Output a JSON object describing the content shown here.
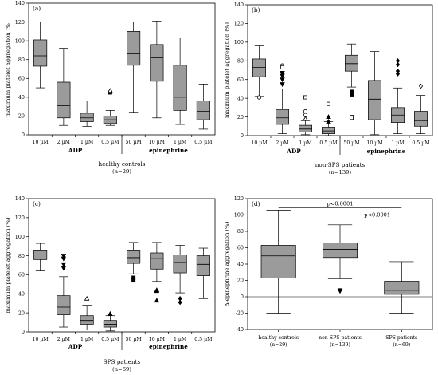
{
  "chart_data": [
    {
      "type": "box",
      "panel_label": "(a)",
      "ylabel": "maximum platelet aggregation (%)",
      "ylim": [
        0,
        140
      ],
      "yticks": [
        0,
        20,
        40,
        60,
        80,
        100,
        120,
        140
      ],
      "grid": false,
      "categories": [
        "10 µM",
        "2 µM",
        "1 µM",
        "0.5 µM",
        "50 µM",
        "10 µM",
        "1 µM",
        "0.5 µM"
      ],
      "groups": [
        {
          "label": "ADP",
          "categories": [
            0,
            1,
            2,
            3
          ]
        },
        {
          "label": "epinephrine",
          "categories": [
            4,
            5,
            6,
            7
          ]
        }
      ],
      "caption": "healthy controls",
      "caption_n": "(n=29)",
      "boxes": [
        {
          "min": 50,
          "q1": 73,
          "median": 84,
          "q3": 101,
          "max": 120
        },
        {
          "min": 10,
          "q1": 18,
          "median": 31,
          "q3": 56,
          "max": 92
        },
        {
          "min": 9,
          "q1": 14,
          "median": 18,
          "q3": 23,
          "max": 36
        },
        {
          "min": 10,
          "q1": 12,
          "median": 16,
          "q3": 20,
          "max": 26,
          "outliers": [
            {
              "y": 45,
              "marker": "square"
            },
            {
              "y": 47,
              "marker": "triangle-open"
            }
          ]
        },
        {
          "min": 24,
          "q1": 74,
          "median": 86,
          "q3": 110,
          "max": 120
        },
        {
          "min": 18,
          "q1": 57,
          "median": 82,
          "q3": 96,
          "max": 121
        },
        {
          "min": 11,
          "q1": 26,
          "median": 40,
          "q3": 74,
          "max": 103
        },
        {
          "min": 6,
          "q1": 16,
          "median": 25,
          "q3": 36,
          "max": 54
        }
      ]
    },
    {
      "type": "box",
      "panel_label": "(b)",
      "ylabel": "maximum platelet aggregation (%)",
      "ylim": [
        0,
        140
      ],
      "yticks": [
        0,
        20,
        40,
        60,
        80,
        100,
        120,
        140
      ],
      "grid": false,
      "categories": [
        "10 µM",
        "2 µM",
        "1 µM",
        "0.5 µM",
        "50 µM",
        "10 µM",
        "1 µM",
        "0.5 µM"
      ],
      "groups": [
        {
          "label": "ADP",
          "categories": [
            0,
            1,
            2,
            3
          ]
        },
        {
          "label": "epinephrine",
          "categories": [
            4,
            5,
            6,
            7
          ]
        }
      ],
      "caption": "non-SPS patients",
      "caption_n": "(n=139)",
      "boxes": [
        {
          "min": 42,
          "q1": 63,
          "median": 73,
          "q3": 82,
          "max": 96,
          "outliers": [
            {
              "y": 41,
              "marker": "circle-open"
            }
          ]
        },
        {
          "min": 2,
          "q1": 12,
          "median": 19,
          "q3": 28,
          "max": 50,
          "outliers": [
            {
              "y": 75,
              "marker": "circle-open"
            },
            {
              "y": 73,
              "marker": "circle-open"
            },
            {
              "y": 67,
              "marker": "triangle-down"
            },
            {
              "y": 64,
              "marker": "triangle-down"
            },
            {
              "y": 60,
              "marker": "triangle-down"
            },
            {
              "y": 55,
              "marker": "triangle-down"
            }
          ]
        },
        {
          "min": 1,
          "q1": 4,
          "median": 7,
          "q3": 11,
          "max": 16,
          "outliers": [
            {
              "y": 41,
              "marker": "square-open"
            },
            {
              "y": 26,
              "marker": "circle-open"
            },
            {
              "y": 22,
              "marker": "circle-open"
            },
            {
              "y": 18,
              "marker": "triangle-open"
            }
          ]
        },
        {
          "min": 0,
          "q1": 2,
          "median": 5,
          "q3": 9,
          "max": 15,
          "outliers": [
            {
              "y": 34,
              "marker": "square-open"
            },
            {
              "y": 20,
              "marker": "triangle"
            },
            {
              "y": 15,
              "marker": "triangle"
            }
          ]
        },
        {
          "min": 52,
          "q1": 69,
          "median": 77,
          "q3": 86,
          "max": 98,
          "outliers": [
            {
              "y": 47,
              "marker": "square"
            },
            {
              "y": 44,
              "marker": "square"
            },
            {
              "y": 20,
              "marker": "square-open"
            },
            {
              "y": 19,
              "marker": "square-open"
            }
          ]
        },
        {
          "min": 1,
          "q1": 17,
          "median": 39,
          "q3": 59,
          "max": 90
        },
        {
          "min": 2,
          "q1": 14,
          "median": 22,
          "q3": 30,
          "max": 51,
          "outliers": [
            {
              "y": 80,
              "marker": "diamond"
            },
            {
              "y": 76,
              "marker": "diamond"
            },
            {
              "y": 69,
              "marker": "diamond"
            },
            {
              "y": 66,
              "marker": "diamond"
            }
          ]
        },
        {
          "min": 2,
          "q1": 10,
          "median": 16,
          "q3": 26,
          "max": 43,
          "outliers": [
            {
              "y": 53,
              "marker": "diamond-open"
            }
          ]
        }
      ]
    },
    {
      "type": "box",
      "panel_label": "(c)",
      "ylabel": "maximum platelet aggregation (%)",
      "ylim": [
        0,
        140
      ],
      "yticks": [
        0,
        20,
        40,
        60,
        80,
        100,
        120,
        140
      ],
      "grid": false,
      "categories": [
        "10 µM",
        "2 µM",
        "1 µM",
        "0.5 µM",
        "50 µM",
        "10 µM",
        "1 µM",
        "0.5 µM"
      ],
      "groups": [
        {
          "label": "ADP",
          "categories": [
            0,
            1,
            2,
            3
          ]
        },
        {
          "label": "epinephrine",
          "categories": [
            4,
            5,
            6,
            7
          ]
        }
      ],
      "caption": "SPS patients",
      "caption_n": "(n=69)",
      "boxes": [
        {
          "min": 64,
          "q1": 76,
          "median": 81,
          "q3": 86,
          "max": 93
        },
        {
          "min": 5,
          "q1": 18,
          "median": 26,
          "q3": 38,
          "max": 58,
          "outliers": [
            {
              "y": 80,
              "marker": "triangle-down"
            },
            {
              "y": 77,
              "marker": "triangle-down"
            },
            {
              "y": 71,
              "marker": "triangle-down"
            },
            {
              "y": 67,
              "marker": "triangle-down"
            }
          ]
        },
        {
          "min": 2,
          "q1": 8,
          "median": 12,
          "q3": 17,
          "max": 28,
          "outliers": [
            {
              "y": 35,
              "marker": "triangle-open"
            }
          ]
        },
        {
          "min": 1,
          "q1": 5,
          "median": 8,
          "q3": 12,
          "max": 17,
          "outliers": [
            {
              "y": 19,
              "marker": "triangle"
            }
          ]
        },
        {
          "min": 61,
          "q1": 72,
          "median": 78,
          "q3": 86,
          "max": 94,
          "outliers": [
            {
              "y": 57,
              "marker": "square"
            },
            {
              "y": 54,
              "marker": "square"
            }
          ]
        },
        {
          "min": 53,
          "q1": 66,
          "median": 77,
          "q3": 83,
          "max": 94,
          "outliers": [
            {
              "y": 44,
              "marker": "triangle"
            },
            {
              "y": 43,
              "marker": "triangle"
            },
            {
              "y": 33,
              "marker": "triangle"
            }
          ]
        },
        {
          "min": 41,
          "q1": 62,
          "median": 73,
          "q3": 81,
          "max": 91,
          "outliers": [
            {
              "y": 35,
              "marker": "diamond"
            },
            {
              "y": 31,
              "marker": "diamond"
            }
          ]
        },
        {
          "min": 35,
          "q1": 59,
          "median": 71,
          "q3": 80,
          "max": 88
        }
      ]
    },
    {
      "type": "box",
      "panel_label": "(d)",
      "ylabel": "Δ-epinephrine aggregation (%)",
      "ylim": [
        -40,
        120
      ],
      "yticks": [
        -40,
        -20,
        0,
        20,
        40,
        60,
        80,
        100,
        120
      ],
      "grid": false,
      "categories": [
        "healthy controls",
        "non-SPS patients",
        "SPS patients"
      ],
      "category_n": [
        "(n=29)",
        "(n=139)",
        "(n=69)"
      ],
      "boxes": [
        {
          "min": -20,
          "q1": 23,
          "median": 50,
          "q3": 63,
          "max": 106
        },
        {
          "min": 22,
          "q1": 48,
          "median": 58,
          "q3": 66,
          "max": 88,
          "outliers": [
            {
              "y": 8,
              "marker": "triangle-down"
            },
            {
              "y": 7,
              "marker": "triangle-down"
            }
          ]
        },
        {
          "min": -20,
          "q1": 3,
          "median": 8,
          "q3": 19,
          "max": 43
        }
      ],
      "annotations": [
        {
          "text": "p<0.0001",
          "from": 0,
          "to": 2,
          "y": 109
        },
        {
          "text": "p<0.0001",
          "from": 1,
          "to": 2,
          "y": 95
        }
      ]
    }
  ]
}
